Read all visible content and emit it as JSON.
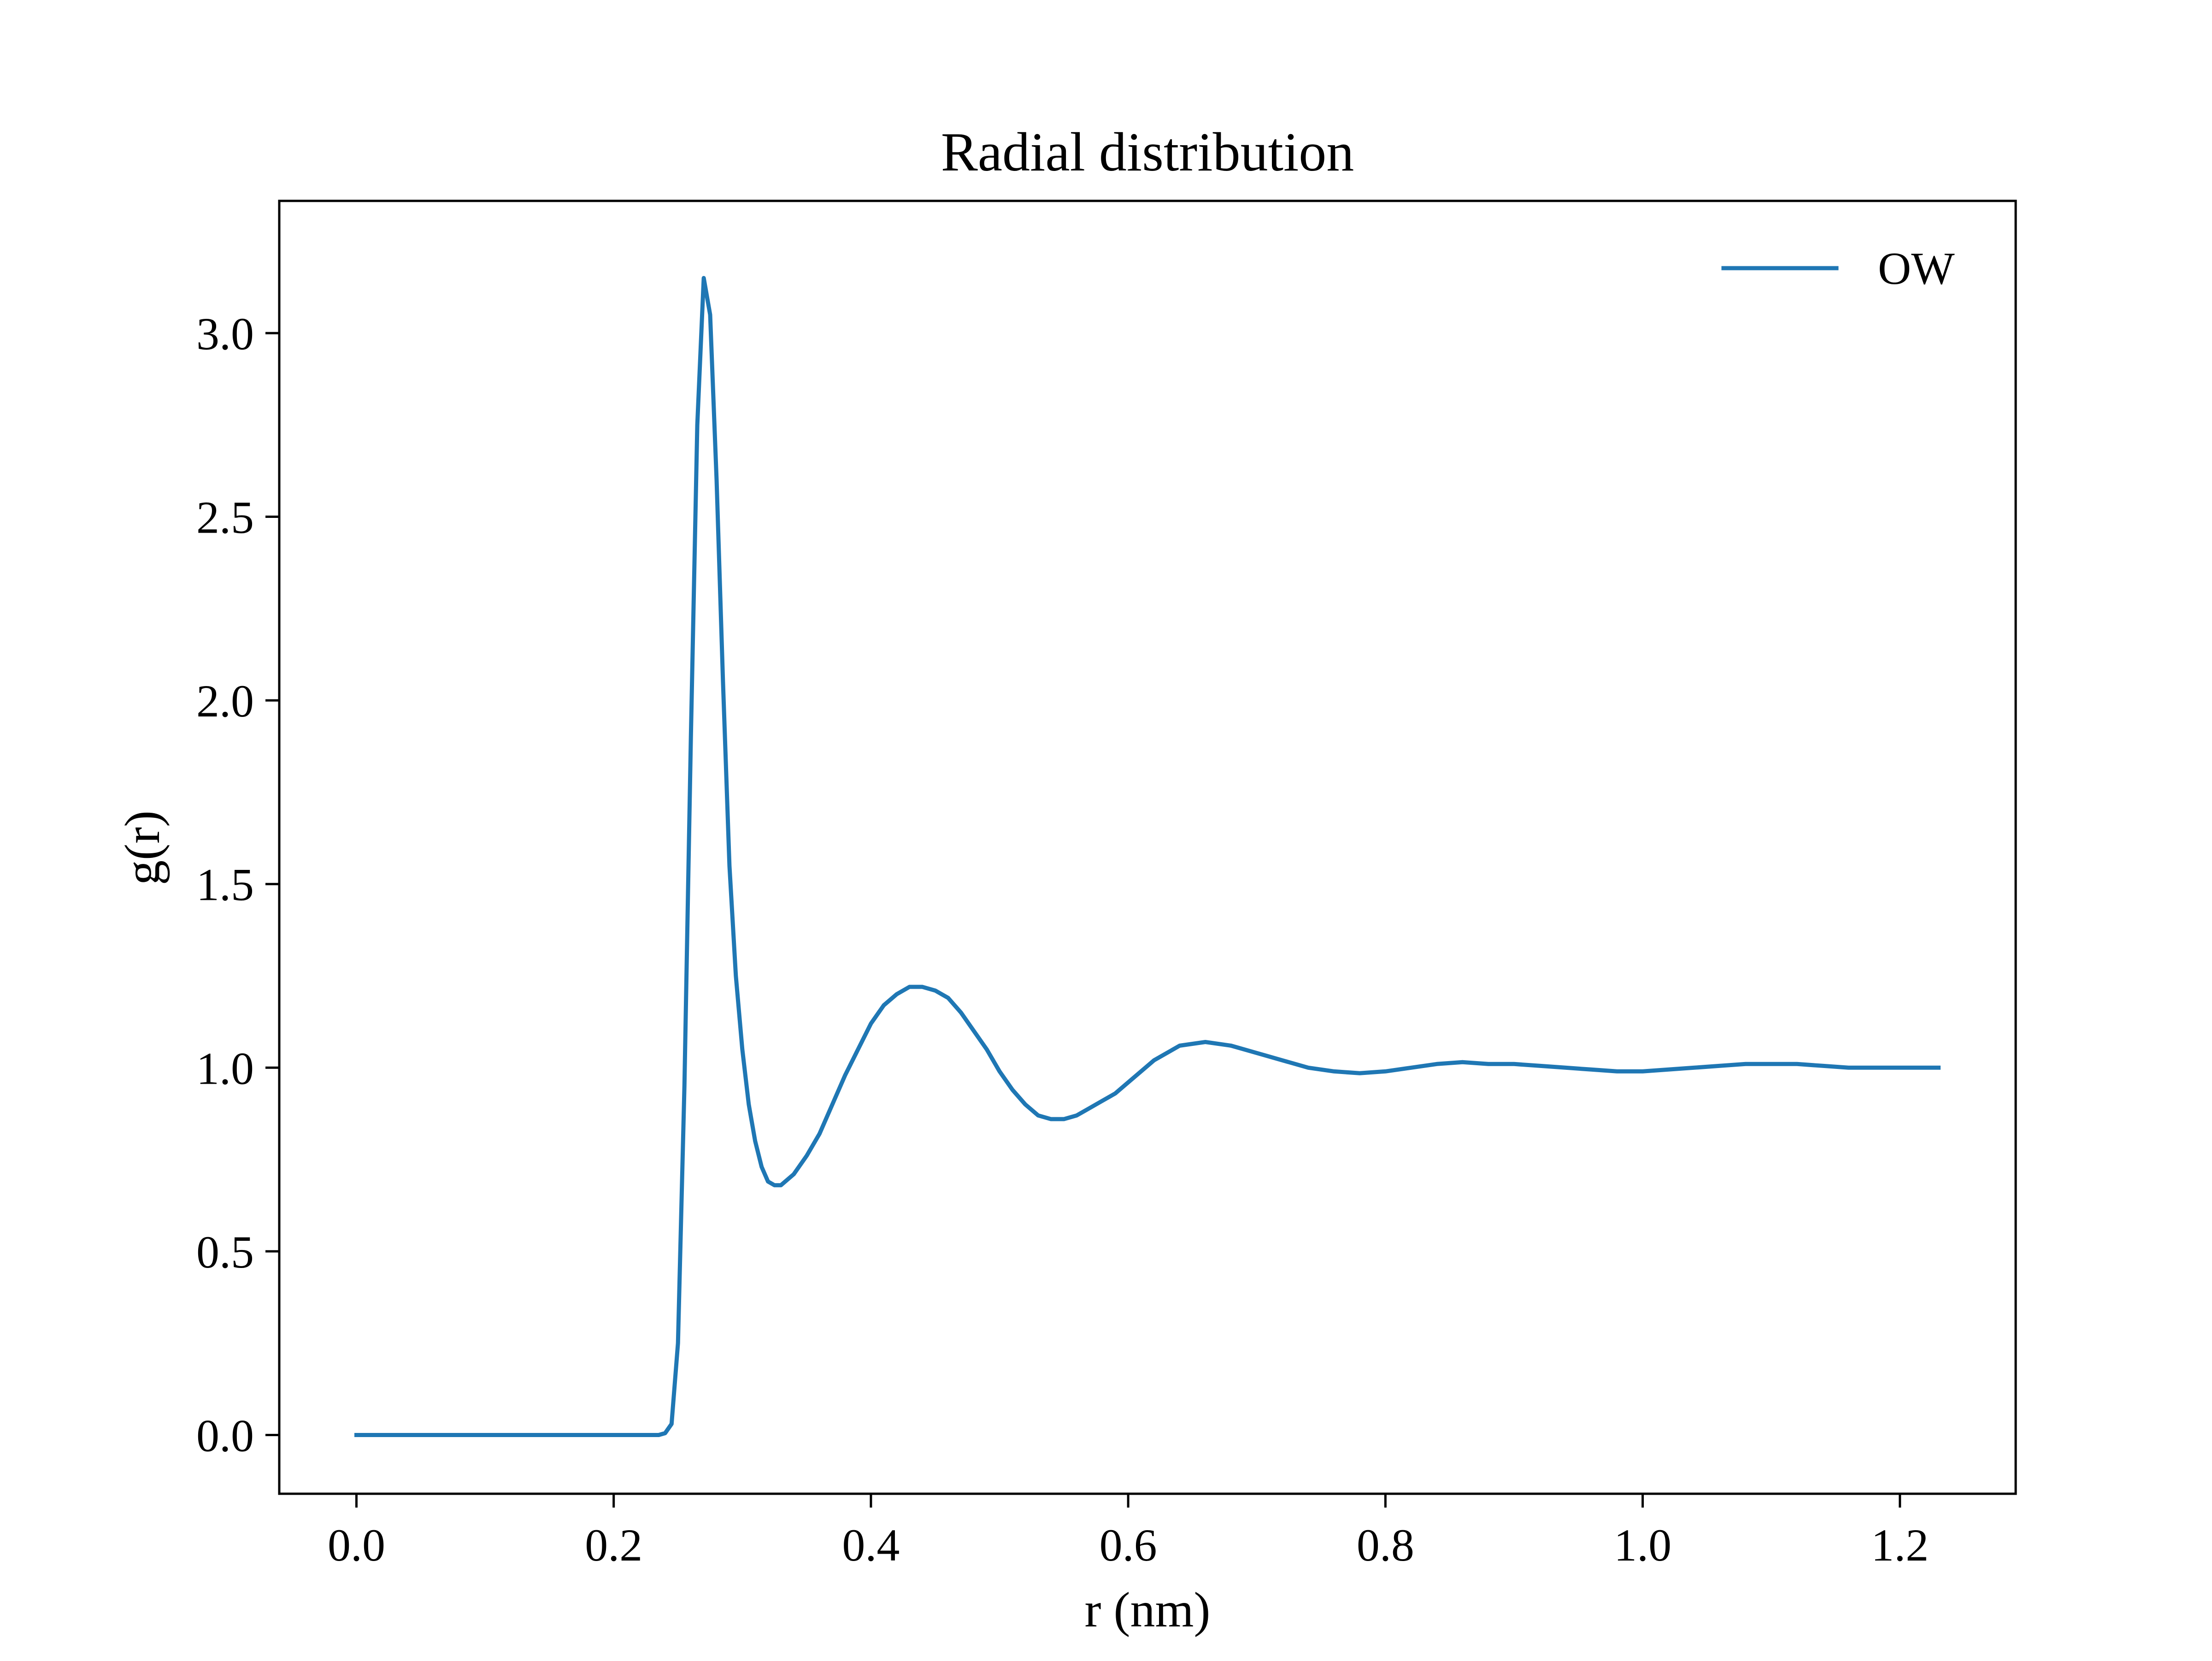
{
  "chart_data": {
    "type": "line",
    "title": "Radial distribution",
    "xlabel": "r (nm)",
    "ylabel": "g(r)",
    "xlim": [
      -0.06,
      1.29
    ],
    "ylim": [
      -0.16,
      3.36
    ],
    "xticks": [
      0.0,
      0.2,
      0.4,
      0.6,
      0.8,
      1.0,
      1.2
    ],
    "xtick_labels": [
      "0.0",
      "0.2",
      "0.4",
      "0.6",
      "0.8",
      "1.0",
      "1.2"
    ],
    "yticks": [
      0.0,
      0.5,
      1.0,
      1.5,
      2.0,
      2.5,
      3.0
    ],
    "ytick_labels": [
      "0.0",
      "0.5",
      "1.0",
      "1.5",
      "2.0",
      "2.5",
      "3.0"
    ],
    "grid": false,
    "legend": {
      "position": "top-right",
      "frameless": true
    },
    "series": [
      {
        "name": "OW",
        "color": "#1f77b4",
        "x": [
          0.0,
          0.05,
          0.1,
          0.15,
          0.2,
          0.235,
          0.24,
          0.245,
          0.25,
          0.255,
          0.26,
          0.265,
          0.27,
          0.275,
          0.28,
          0.285,
          0.29,
          0.295,
          0.3,
          0.305,
          0.31,
          0.315,
          0.32,
          0.325,
          0.33,
          0.34,
          0.35,
          0.36,
          0.37,
          0.38,
          0.39,
          0.4,
          0.41,
          0.42,
          0.43,
          0.44,
          0.45,
          0.46,
          0.47,
          0.48,
          0.49,
          0.5,
          0.51,
          0.52,
          0.53,
          0.54,
          0.55,
          0.56,
          0.57,
          0.58,
          0.59,
          0.6,
          0.62,
          0.64,
          0.66,
          0.68,
          0.7,
          0.72,
          0.74,
          0.76,
          0.78,
          0.8,
          0.82,
          0.84,
          0.86,
          0.88,
          0.9,
          0.92,
          0.94,
          0.96,
          0.98,
          1.0,
          1.02,
          1.04,
          1.06,
          1.08,
          1.1,
          1.12,
          1.14,
          1.16,
          1.18,
          1.2,
          1.22,
          1.23
        ],
        "y": [
          0.0,
          0.0,
          0.0,
          0.0,
          0.0,
          0.0,
          0.005,
          0.03,
          0.25,
          0.95,
          1.9,
          2.75,
          3.15,
          3.05,
          2.6,
          2.05,
          1.55,
          1.25,
          1.05,
          0.9,
          0.8,
          0.73,
          0.69,
          0.68,
          0.68,
          0.71,
          0.76,
          0.82,
          0.9,
          0.98,
          1.05,
          1.12,
          1.17,
          1.2,
          1.22,
          1.22,
          1.21,
          1.19,
          1.15,
          1.1,
          1.05,
          0.99,
          0.94,
          0.9,
          0.87,
          0.86,
          0.86,
          0.87,
          0.89,
          0.91,
          0.93,
          0.96,
          1.02,
          1.06,
          1.07,
          1.06,
          1.04,
          1.02,
          1.0,
          0.99,
          0.985,
          0.99,
          1.0,
          1.01,
          1.015,
          1.01,
          1.01,
          1.005,
          1.0,
          0.995,
          0.99,
          0.99,
          0.995,
          1.0,
          1.005,
          1.01,
          1.01,
          1.01,
          1.005,
          1.0,
          1.0,
          1.0,
          1.0,
          1.0
        ]
      }
    ]
  }
}
